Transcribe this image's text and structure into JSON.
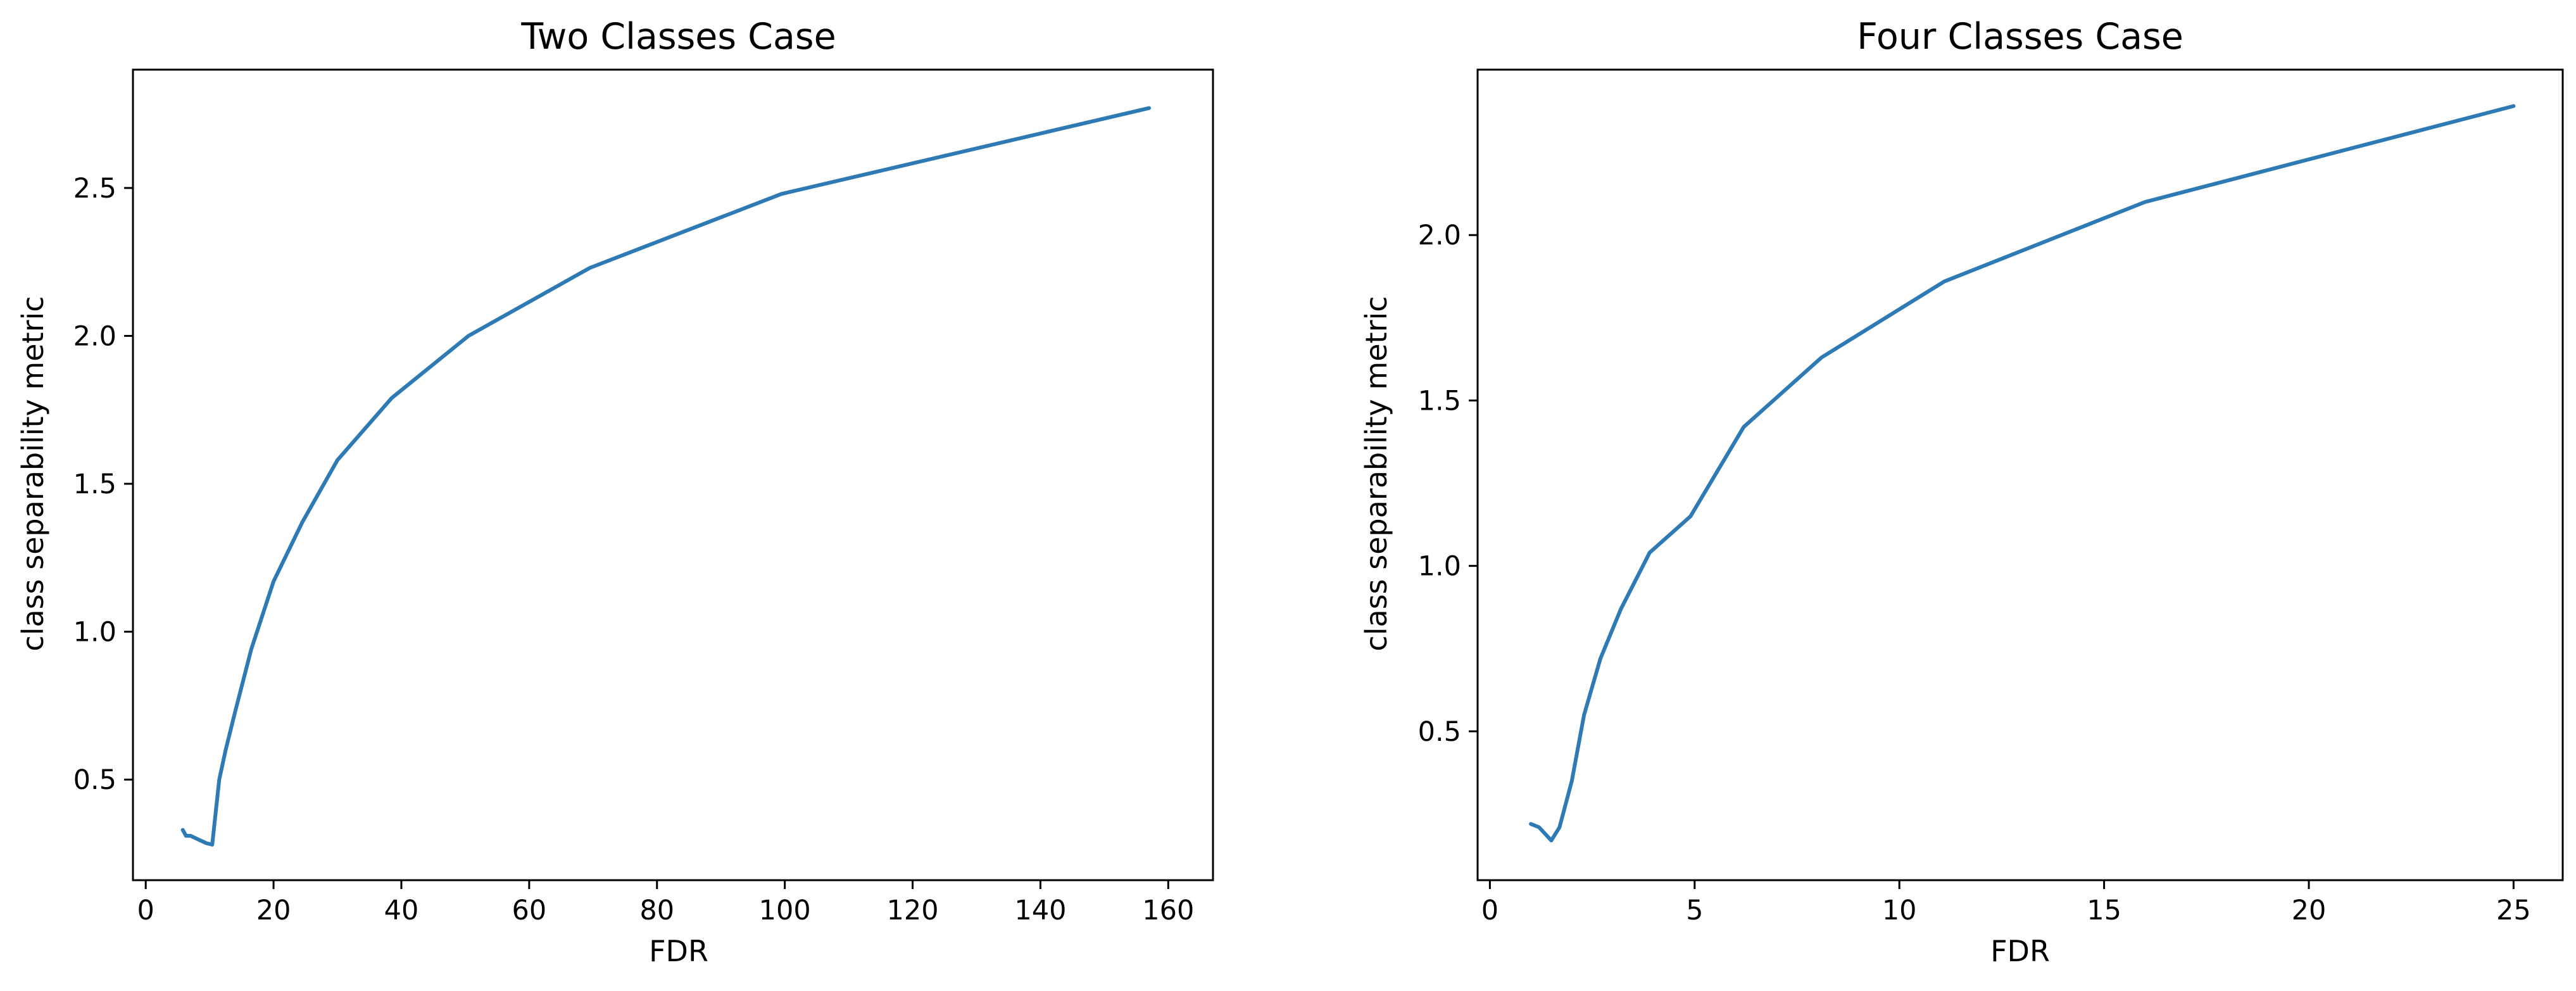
{
  "colors": {
    "series": "#2e7ab5"
  },
  "chart_data": [
    {
      "type": "line",
      "title": "Two Classes Case",
      "xlabel": "FDR",
      "ylabel": "class separability metric",
      "xlim": [
        -2,
        167
      ],
      "ylim": [
        0.16,
        2.9
      ],
      "xticks": [
        0,
        20,
        40,
        60,
        80,
        100,
        120,
        140,
        160
      ],
      "yticks": [
        0.5,
        1.0,
        1.5,
        2.0,
        2.5
      ],
      "xtick_labels": [
        "0",
        "20",
        "40",
        "60",
        "80",
        "100",
        "120",
        "140",
        "160"
      ],
      "ytick_labels": [
        "0.5",
        "1.0",
        "1.5",
        "2.0",
        "2.5"
      ],
      "grid": false,
      "series": [
        {
          "x": [
            5.8,
            6.3,
            7.0,
            8.0,
            9.5,
            10.4,
            11.5,
            12.5,
            14.0,
            16.5,
            20.0,
            24.5,
            30.0,
            38.5,
            50.5,
            69.5,
            99.5,
            157.0
          ],
          "y": [
            0.33,
            0.31,
            0.31,
            0.3,
            0.285,
            0.28,
            0.5,
            0.6,
            0.73,
            0.94,
            1.17,
            1.37,
            1.58,
            1.79,
            2.0,
            2.23,
            2.48,
            2.77
          ]
        }
      ]
    },
    {
      "type": "line",
      "title": "Four Classes Case",
      "xlabel": "FDR",
      "ylabel": "class separability metric",
      "xlim": [
        -0.3,
        26.2
      ],
      "ylim": [
        0.05,
        2.5
      ],
      "xticks": [
        0,
        5,
        10,
        15,
        20,
        25
      ],
      "yticks": [
        0.5,
        1.0,
        1.5,
        2.0
      ],
      "xtick_labels": [
        "0",
        "5",
        "10",
        "15",
        "20",
        "25"
      ],
      "ytick_labels": [
        "0.5",
        "1.0",
        "1.5",
        "2.0"
      ],
      "grid": false,
      "series": [
        {
          "x": [
            1.0,
            1.2,
            1.35,
            1.5,
            1.7,
            2.0,
            2.3,
            2.7,
            3.2,
            3.9,
            4.9,
            6.2,
            8.1,
            11.1,
            16.0,
            25.0
          ],
          "y": [
            0.22,
            0.21,
            0.19,
            0.17,
            0.21,
            0.35,
            0.55,
            0.72,
            0.87,
            1.04,
            1.15,
            1.42,
            1.63,
            1.86,
            2.1,
            2.39
          ]
        }
      ]
    }
  ]
}
